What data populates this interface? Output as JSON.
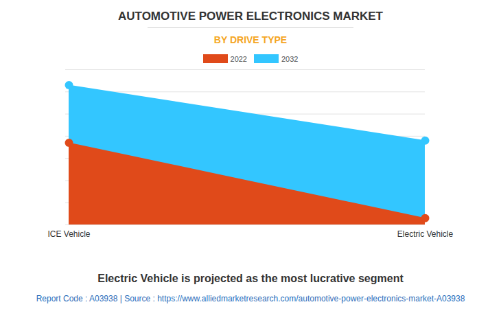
{
  "chart_data": {
    "type": "area",
    "title": "AUTOMOTIVE POWER ELECTRONICS MARKET",
    "subtitle": "BY DRIVE TYPE",
    "caption": "Electric Vehicle is projected as the most lucrative segment",
    "source": "Report Code : A03938  |  Source : https://www.alliedmarketresearch.com/automotive-power-electronics-market-A03938",
    "categories": [
      "ICE Vehicle",
      "Electric Vehicle"
    ],
    "series": [
      {
        "name": "2022",
        "color": "#e04a1a",
        "values": [
          3.7,
          0.3
        ]
      },
      {
        "name": "2032",
        "color": "#33c6ff",
        "values": [
          6.3,
          3.8
        ]
      }
    ],
    "ylim": [
      0,
      7
    ],
    "yticks": [
      0,
      1,
      2,
      3,
      4,
      5,
      6,
      7
    ],
    "grid": true,
    "tick_labels": "x",
    "marker": "circle",
    "stacked": false
  }
}
